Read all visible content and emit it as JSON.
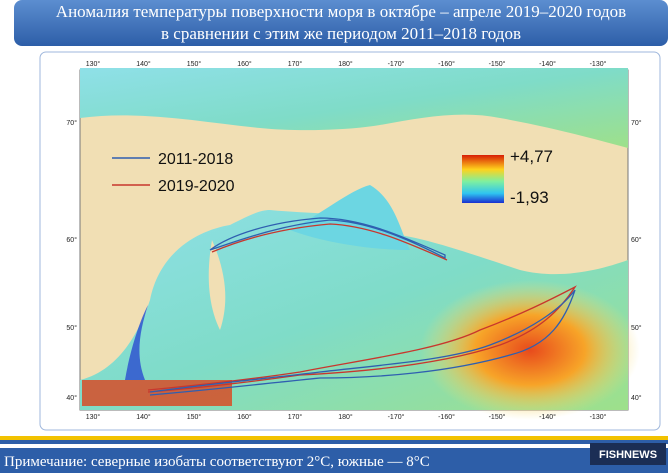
{
  "header": {
    "title_lines": [
      "Аномалия температуры поверхности моря в октябре – апреле 2019–2020 годов",
      "в сравнении с этим же периодом 2011–2018 годов"
    ]
  },
  "map": {
    "lon_labels": [
      "130°",
      "140°",
      "150°",
      "160°",
      "170°",
      "180°",
      "-170°",
      "-160°",
      "-150°",
      "-140°",
      "-130°"
    ],
    "lat_labels": [
      "70°",
      "60°",
      "50°",
      "40°"
    ],
    "legend": [
      {
        "label": "2011-2018",
        "color": "#2f5fb0"
      },
      {
        "label": "2019-2020",
        "color": "#c8372d"
      }
    ],
    "colorbar": {
      "max_label": "+4,77",
      "min_label": "-1,93"
    }
  },
  "footer": {
    "note": "Примечание: северные изобаты соответствуют 2°С, южные — 8°С",
    "logo": "FISHNEWS"
  }
}
